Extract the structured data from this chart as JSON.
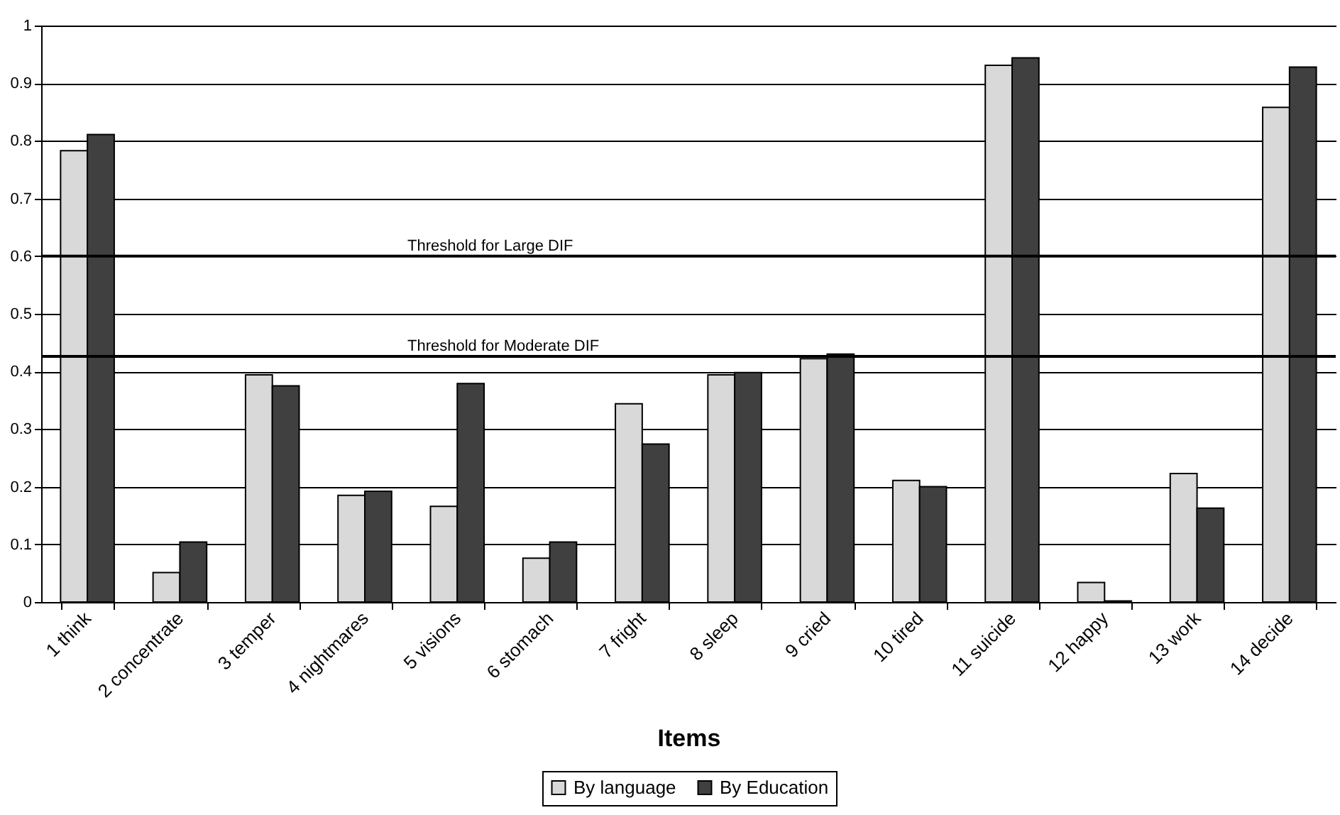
{
  "chart_data": {
    "type": "bar",
    "xlabel": "Items",
    "categories": [
      "1  think",
      "2  concentrate",
      "3  temper",
      "4  nightmares",
      "5  visions",
      "6  stomach",
      "7  fright",
      "8  sleep",
      "9  cried",
      "10  tired",
      "11  suicide",
      "12  happy",
      "13  work",
      "14  decide"
    ],
    "series": [
      {
        "name": "By language",
        "color": "#d9d9d9",
        "values": [
          0.783,
          0.051,
          0.394,
          0.185,
          0.166,
          0.076,
          0.344,
          0.394,
          0.422,
          0.211,
          0.931,
          0.034,
          0.223,
          0.858
        ]
      },
      {
        "name": "By Education",
        "color": "#404040",
        "values": [
          0.811,
          0.104,
          0.375,
          0.192,
          0.379,
          0.104,
          0.274,
          0.398,
          0.43,
          0.2,
          0.944,
          0.002,
          0.163,
          0.928
        ]
      }
    ],
    "ylim": [
      0,
      1
    ],
    "yticks": [
      0,
      0.1,
      0.2,
      0.3,
      0.4,
      0.5,
      0.6,
      0.7,
      0.8,
      0.9,
      1
    ],
    "grid": "y",
    "legend": "bottom",
    "ref_lines": [
      {
        "axis": "y",
        "value": 0.6,
        "label": "Threshold for Large DIF"
      },
      {
        "axis": "y",
        "value": 0.426,
        "label": "Threshold for Moderate DIF"
      }
    ]
  }
}
